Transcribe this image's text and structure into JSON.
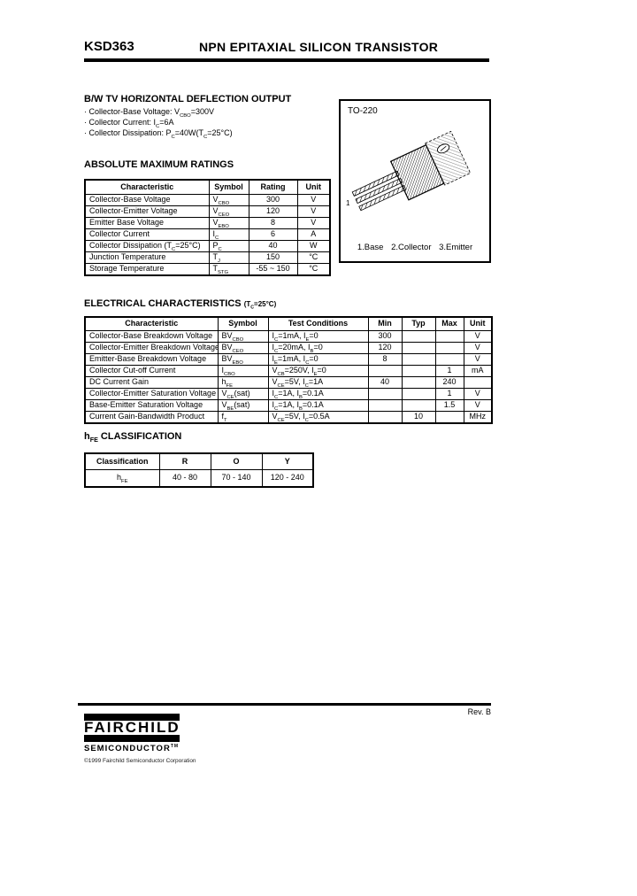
{
  "header": {
    "part_number": "KSD363",
    "title": "NPN EPITAXIAL SILICON TRANSISTOR"
  },
  "application": {
    "heading": "B/W TV HORIZONTAL DEFLECTION OUTPUT",
    "bullets": [
      "· Collector-Base Voltage: V<sub>CBO</sub>=300V",
      "· Collector Current: I<sub>C</sub>=6A",
      "· Collector Dissipation: P<sub>C</sub>=40W(T<sub>C</sub>=25°C)"
    ]
  },
  "package_box": {
    "label": "TO-220",
    "pin1_marker": "1",
    "pins": "1.Base 2.Collector 3.Emitter"
  },
  "absolute_maximum_ratings": {
    "heading": "ABSOLUTE MAXIMUM RATINGS",
    "headers": [
      "Characteristic",
      "Symbol",
      "Rating",
      "Unit"
    ],
    "rows": [
      [
        "Collector-Base Voltage",
        "V<sub>CBO</sub>",
        "300",
        "V"
      ],
      [
        "Collector-Emitter Voltage",
        "V<sub>CEO</sub>",
        "120",
        "V"
      ],
      [
        "Emitter Base Voltage",
        "V<sub>EBO</sub>",
        "8",
        "V"
      ],
      [
        "Collector Current",
        "I<sub>C</sub>",
        "6",
        "A"
      ],
      [
        "Collector Dissipation (T<sub>C</sub>=25°C)",
        "P<sub>C</sub>",
        "40",
        "W"
      ],
      [
        "Junction Temperature",
        "T<sub>J</sub>",
        "150",
        "°C"
      ],
      [
        "Storage Temperature",
        "T<sub>STG</sub>",
        "-55 ~ 150",
        "°C"
      ]
    ]
  },
  "electrical_characteristics": {
    "heading": "ELECTRICAL CHARACTERISTICS",
    "condition": "(T<sub>C</sub>=25°C)",
    "headers": [
      "Characteristic",
      "Symbol",
      "Test Conditions",
      "Min",
      "Typ",
      "Max",
      "Unit"
    ],
    "rows": [
      [
        "Collector-Base Breakdown Voltage",
        "BV<sub>CBO</sub>",
        "I<sub>C</sub>=1mA, I<sub>E</sub>=0",
        "300",
        "",
        "",
        "V"
      ],
      [
        "Collector-Emitter Breakdown Voltage",
        "BV<sub>CEO</sub>",
        "I<sub>C</sub>=20mA, I<sub>B</sub>=0",
        "120",
        "",
        "",
        "V"
      ],
      [
        "Emitter-Base Breakdown Voltage",
        "BV<sub>EBO</sub>",
        "I<sub>E</sub>=1mA, I<sub>C</sub>=0",
        "8",
        "",
        "",
        "V"
      ],
      [
        "Collector Cut-off Current",
        "I<sub>CBO</sub>",
        "V<sub>CB</sub>=250V, I<sub>E</sub>=0",
        "",
        "",
        "1",
        "mA"
      ],
      [
        "DC Current Gain",
        "h<sub>FE</sub>",
        "V<sub>CE</sub>=5V, I<sub>C</sub>=1A",
        "40",
        "",
        "240",
        ""
      ],
      [
        "Collector-Emitter Saturation Voltage",
        "V<sub>CE</sub>(sat)",
        "I<sub>C</sub>=1A, I<sub>B</sub>=0.1A",
        "",
        "",
        "1",
        "V"
      ],
      [
        "Base-Emitter Saturation Voltage",
        "V<sub>BE</sub>(sat)",
        "I<sub>C</sub>=1A, I<sub>B</sub>=0.1A",
        "",
        "",
        "1.5",
        "V"
      ],
      [
        "Current Gain-Bandwidth Product",
        "f<sub>T</sub>",
        "V<sub>CE</sub>=5V, I<sub>C</sub>=0.5A",
        "",
        "10",
        "",
        "MHz"
      ]
    ]
  },
  "hfe_classification": {
    "heading": "h<sub>FE</sub> CLASSIFICATION",
    "headers": [
      "Classification",
      "R",
      "O",
      "Y"
    ],
    "rows": [
      [
        "h<sub>FE</sub>",
        "40 - 80",
        "70 - 140",
        "120 - 240"
      ]
    ]
  },
  "footer": {
    "rev": "Rev. B",
    "logo_name": "FAIRCHILD",
    "logo_sub": "SEMICONDUCTOR",
    "logo_tm": "TM",
    "copyright": "©1999 Fairchild Semiconductor Corporation"
  }
}
